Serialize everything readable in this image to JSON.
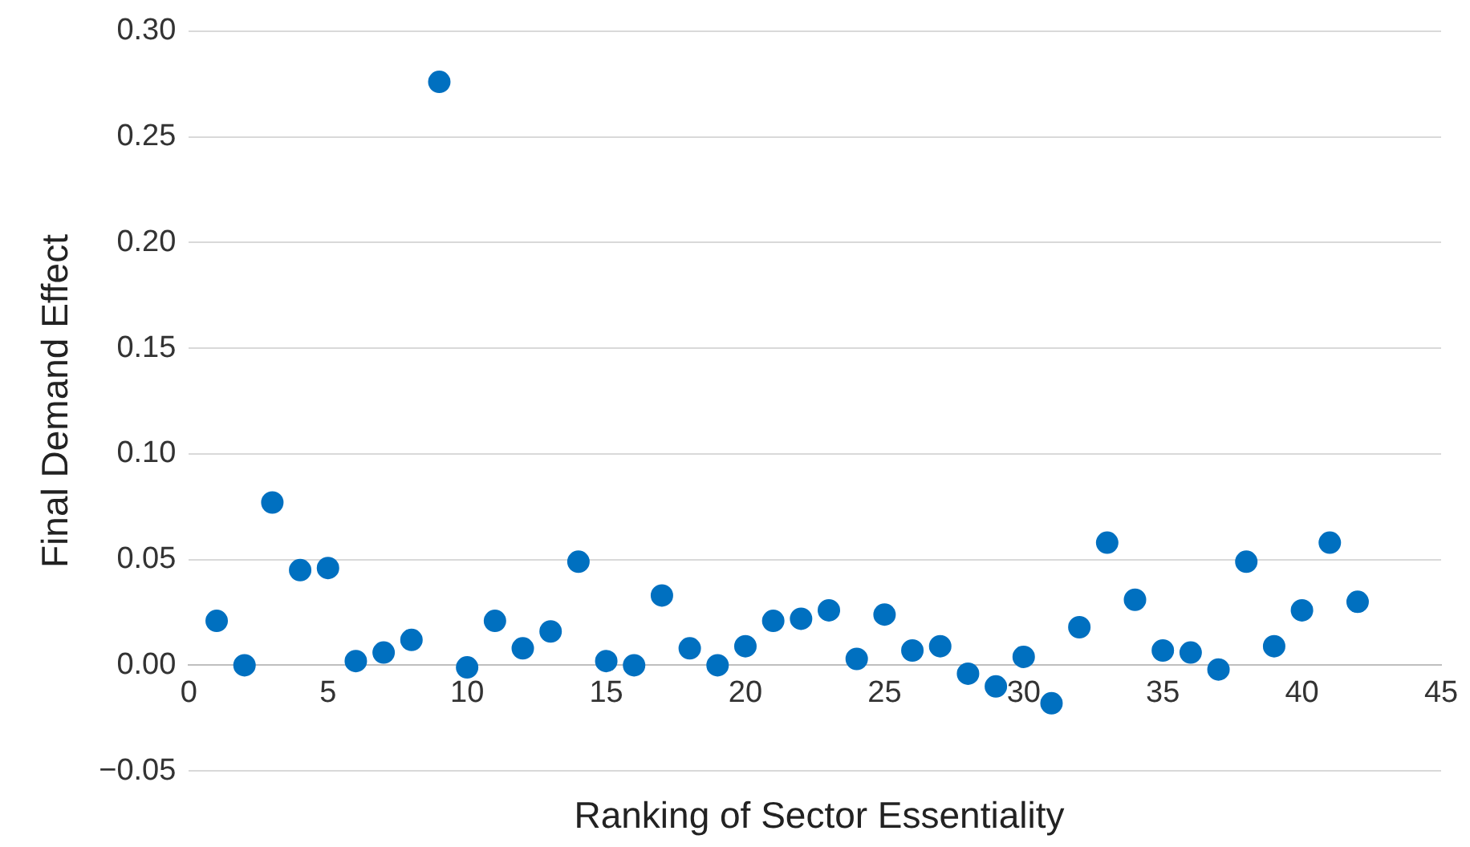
{
  "chart_data": {
    "type": "scatter",
    "xlabel": "Ranking of Sector Essentiality",
    "ylabel": "Final Demand Effect",
    "x": [
      1,
      2,
      3,
      4,
      5,
      6,
      7,
      8,
      9,
      10,
      11,
      12,
      13,
      14,
      15,
      16,
      17,
      18,
      19,
      20,
      21,
      22,
      23,
      24,
      25,
      26,
      27,
      28,
      29,
      30,
      31,
      32,
      33,
      34,
      35,
      36,
      37,
      38,
      39,
      40,
      41,
      42
    ],
    "series": [
      {
        "color": "#0070c0",
        "values": [
          0.021,
          0.0,
          0.077,
          0.045,
          0.046,
          0.002,
          0.006,
          0.012,
          0.276,
          -0.001,
          0.021,
          0.008,
          0.016,
          0.049,
          0.002,
          0.0,
          0.033,
          0.008,
          0.0,
          0.009,
          0.021,
          0.022,
          0.026,
          0.003,
          0.024,
          0.007,
          0.009,
          -0.004,
          -0.01,
          0.004,
          -0.018,
          0.018,
          0.058,
          0.031,
          0.007,
          0.006,
          -0.002,
          0.049,
          0.009,
          0.026,
          0.058,
          0.03
        ]
      }
    ],
    "xlim": [
      0,
      45
    ],
    "xticks": [
      0,
      5,
      10,
      15,
      20,
      25,
      30,
      35,
      40,
      45
    ],
    "ylim": [
      -0.05,
      0.3
    ],
    "yticks": [
      {
        "value": -0.05,
        "label": "−0.05"
      },
      {
        "value": 0,
        "label": "0.00"
      },
      {
        "value": 0.05,
        "label": "0.05"
      },
      {
        "value": 0.1,
        "label": "0.10"
      },
      {
        "value": 0.15,
        "label": "0.15"
      },
      {
        "value": 0.2,
        "label": "0.20"
      },
      {
        "value": 0.25,
        "label": "0.25"
      },
      {
        "value": 0.3,
        "label": "0.30"
      }
    ],
    "grid": "y",
    "legend": false,
    "marker": "circle"
  }
}
